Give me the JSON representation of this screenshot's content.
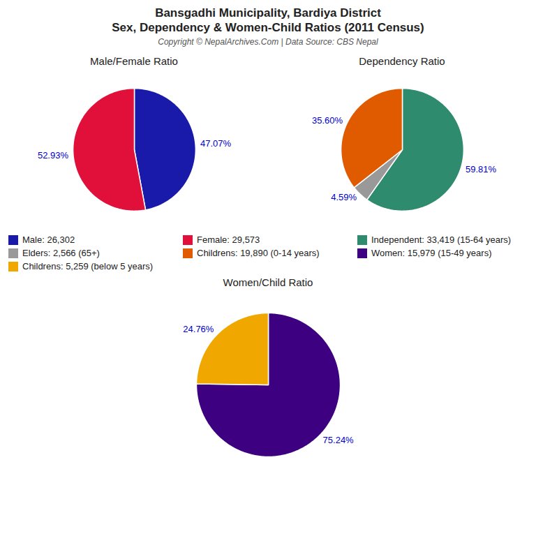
{
  "title": "Bansgadhi Municipality, Bardiya District",
  "subtitle": "Sex, Dependency & Women-Child Ratios (2011 Census)",
  "annotations": [
    "Copyright © NepalArchives.Com | Data Source: CBS Nepal"
  ],
  "chart_data": [
    {
      "type": "pie",
      "title": "Male/Female Ratio",
      "categories": [
        "Male: 26,302",
        "Female: 29,573"
      ],
      "values": [
        47.07,
        52.93
      ],
      "value_labels": [
        "47.07%",
        "52.93%"
      ],
      "colors": [
        "#1a1aaa",
        "#e0103a"
      ],
      "data_labels": true
    },
    {
      "type": "pie",
      "title": "Dependency Ratio",
      "categories": [
        "Independent: 33,419 (15-64 years)",
        "Elders: 2,566 (65+)",
        "Childrens: 19,890 (0-14 years)"
      ],
      "values": [
        59.81,
        4.59,
        35.6
      ],
      "value_labels": [
        "59.81%",
        "4.59%",
        "35.60%"
      ],
      "colors": [
        "#2e8b6e",
        "#999999",
        "#e05a00"
      ],
      "data_labels": true
    },
    {
      "type": "pie",
      "title": "Women/Child Ratio",
      "categories": [
        "Women: 15,979 (15-49 years)",
        "Childrens: 5,259 (below 5 years)"
      ],
      "values": [
        75.24,
        24.76
      ],
      "value_labels": [
        "75.24%",
        "24.76%"
      ],
      "colors": [
        "#3d0080",
        "#f0a800"
      ],
      "data_labels": true
    }
  ]
}
